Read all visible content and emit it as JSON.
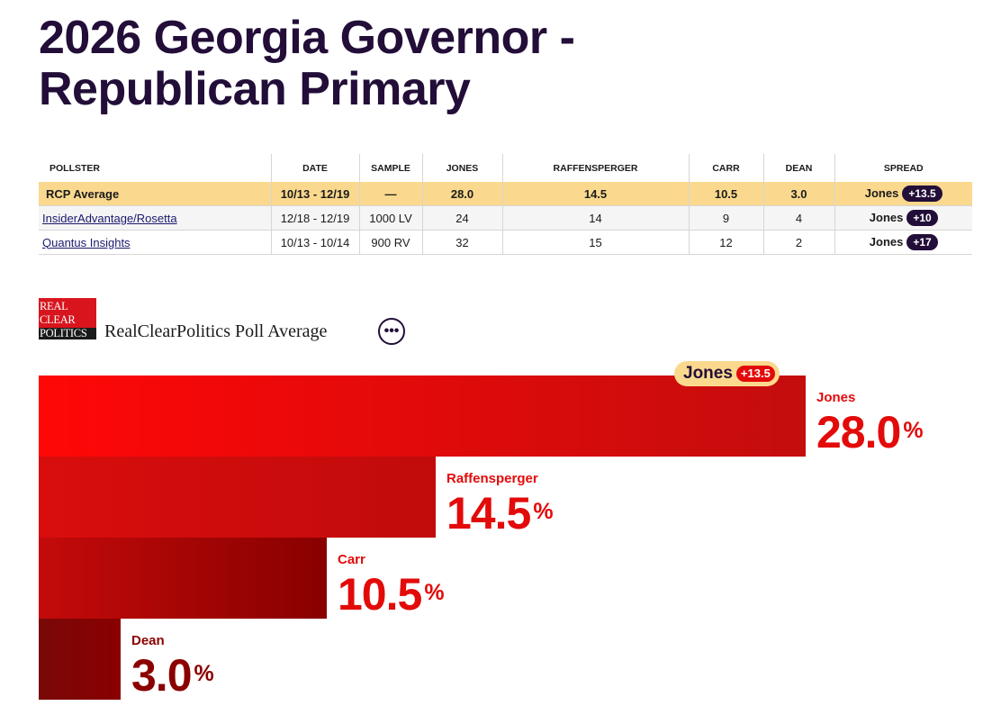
{
  "page": {
    "title": "2026 Georgia Governor - Republican Primary"
  },
  "table": {
    "headers": [
      "POLLSTER",
      "DATE",
      "SAMPLE",
      "JONES",
      "RAFFENSPERGER",
      "CARR",
      "DEAN",
      "SPREAD"
    ],
    "average": {
      "pollster": "RCP Average",
      "date": "10/13 - 12/19",
      "sample": "—",
      "jones": "28.0",
      "raffensperger": "14.5",
      "carr": "10.5",
      "dean": "3.0",
      "spread_name": "Jones",
      "spread_value": "+13.5"
    },
    "rows": [
      {
        "pollster": "InsiderAdvantage/Rosetta",
        "date": "12/18 - 12/19",
        "sample": "1000 LV",
        "jones": "24",
        "raffensperger": "14",
        "carr": "9",
        "dean": "4",
        "spread_name": "Jones",
        "spread_value": "+10"
      },
      {
        "pollster": "Quantus Insights",
        "date": "10/13 - 10/14",
        "sample": "900 RV",
        "jones": "32",
        "raffensperger": "15",
        "carr": "12",
        "dean": "2",
        "spread_name": "Jones",
        "spread_value": "+17"
      }
    ]
  },
  "brand": {
    "logo_lines": [
      "REAL",
      "CLEAR",
      "POLITICS"
    ],
    "name": "RealClearPolitics Poll Average",
    "more_icon": "more-horizontal-icon"
  },
  "chart_data": {
    "type": "bar",
    "orientation": "horizontal",
    "title": "RealClearPolitics Poll Average",
    "categories": [
      "Jones",
      "Raffensperger",
      "Carr",
      "Dean"
    ],
    "values": [
      28.0,
      14.5,
      10.5,
      3.0
    ],
    "value_labels": [
      "28.0",
      "14.5",
      "10.5",
      "3.0"
    ],
    "unit": "%",
    "leader": {
      "name": "Jones",
      "spread": "+13.5"
    },
    "colors": {
      "bars": [
        [
          "#ff0707",
          "#c40d0d"
        ],
        [
          "#d90d0d",
          "#c10b0b"
        ],
        [
          "#c40a0a",
          "#880000"
        ],
        [
          "#7a0808",
          "#8a0000"
        ]
      ],
      "labels": [
        "#e30a0a",
        "#e30a0a",
        "#e30a0a",
        "#8b0000"
      ]
    },
    "xlim": [
      0,
      28.0
    ]
  }
}
